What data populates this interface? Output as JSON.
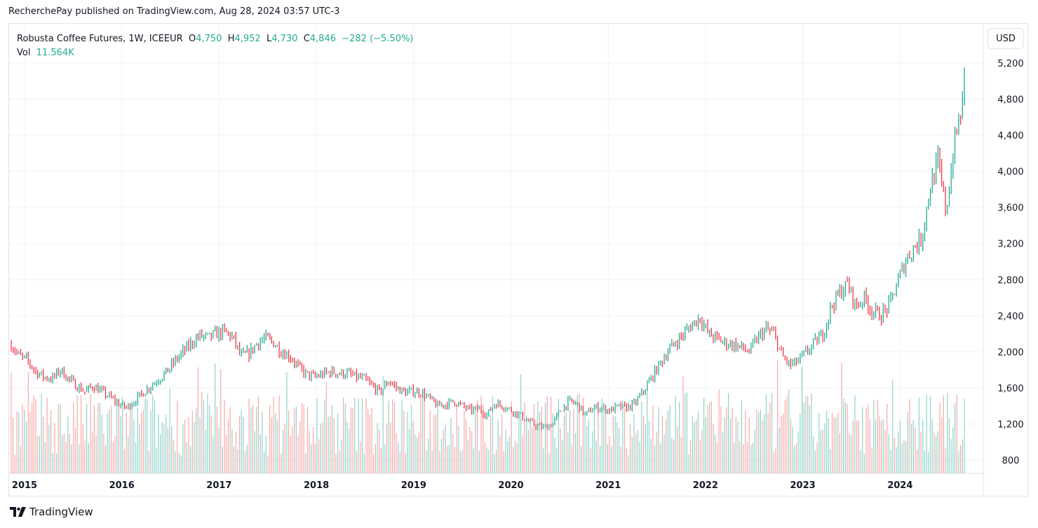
{
  "publisher_line": "RecherchePay published on TradingView.com, Aug 28, 2024 03:57 UTC-3",
  "legend": {
    "symbol": "Robusta Coffee Futures, 1W, ICEEUR",
    "o_label": "O",
    "o": "4,750",
    "h_label": "H",
    "h": "4,952",
    "l_label": "L",
    "l": "4,730",
    "c_label": "C",
    "c": "4,846",
    "change": "−282 (−5.50%)",
    "vol_label": "Vol",
    "vol": "11.564K"
  },
  "currency_button": "USD",
  "logo_text": "TradingView",
  "colors": {
    "up": "#22ab94",
    "down": "#f23645",
    "up_vol": "#8fd3c9",
    "down_vol": "#f7a9a7",
    "grid": "#f0f3fa"
  },
  "chart_data": {
    "type": "ohlc-weekly",
    "title": "Robusta Coffee Futures, 1W, ICEEUR",
    "ylabel": "USD",
    "ylim": [
      650,
      5300
    ],
    "y_ticks": [
      "5,200",
      "4,800",
      "4,400",
      "4,000",
      "3,600",
      "3,200",
      "2,800",
      "2,400",
      "2,000",
      "1,600",
      "1,200",
      "800"
    ],
    "y_tick_values": [
      5200,
      4800,
      4400,
      4000,
      3600,
      3200,
      2800,
      2400,
      2000,
      1600,
      1200,
      800
    ],
    "x_ticks": [
      "2015",
      "2016",
      "2017",
      "2018",
      "2019",
      "2020",
      "2021",
      "2022",
      "2023",
      "2024"
    ],
    "start_month": "2014-12",
    "monthly_close_approx": [
      2080,
      1950,
      1900,
      1780,
      1720,
      1700,
      1800,
      1700,
      1620,
      1560,
      1620,
      1560,
      1500,
      1430,
      1380,
      1450,
      1540,
      1620,
      1700,
      1780,
      1900,
      2000,
      2100,
      2180,
      2150,
      2200,
      2220,
      2160,
      1950,
      1980,
      2100,
      2150,
      2100,
      2000,
      1950,
      1830,
      1750,
      1720,
      1750,
      1780,
      1760,
      1760,
      1720,
      1700,
      1620,
      1550,
      1680,
      1600,
      1550,
      1560,
      1550,
      1480,
      1400,
      1420,
      1450,
      1400,
      1350,
      1370,
      1300,
      1430,
      1400,
      1350,
      1300,
      1230,
      1180,
      1160,
      1200,
      1350,
      1450,
      1420,
      1300,
      1380,
      1380,
      1350,
      1390,
      1380,
      1420,
      1550,
      1700,
      1850,
      2000,
      2100,
      2200,
      2300,
      2380,
      2200,
      2150,
      2100,
      2080,
      2050,
      2000,
      2150,
      2250,
      2200,
      1950,
      1850,
      1900,
      2000,
      2100,
      2200,
      2500,
      2650,
      2750,
      2500,
      2600,
      2450,
      2400,
      2500,
      2750,
      3000,
      3150,
      3250,
      3800,
      4100,
      3550,
      4300,
      4750
    ],
    "last_bar": {
      "open": 4750,
      "high": 4952,
      "low": 4730,
      "close": 4846
    }
  }
}
